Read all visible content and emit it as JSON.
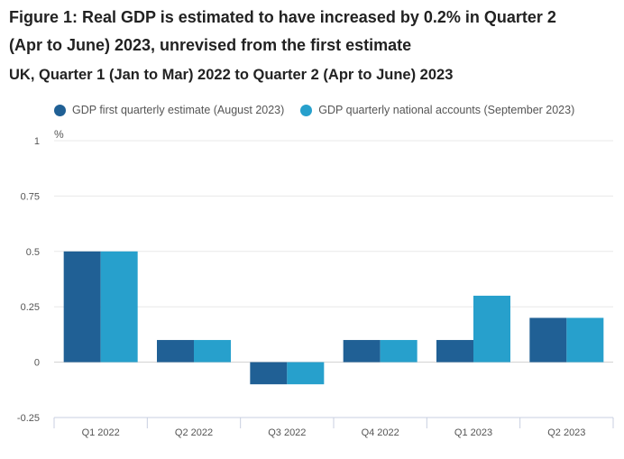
{
  "title": "Figure 1: Real GDP is estimated to have increased by 0.2% in Quarter 2 (Apr to June) 2023, unrevised from the first estimate",
  "subtitle": "UK, Quarter 1 (Jan to Mar) 2022 to Quarter 2 (Apr to June) 2023",
  "chart_data": {
    "type": "bar",
    "ylabel": "%",
    "ylim": [
      -0.25,
      1
    ],
    "yticks": [
      "1",
      "0.75",
      "0.5",
      "0.25",
      "0",
      "-0.25"
    ],
    "grid": true,
    "legend_position": "top",
    "categories": [
      "Q1 2022",
      "Q2 2022",
      "Q3 2022",
      "Q4 2022",
      "Q1 2023",
      "Q2 2023"
    ],
    "series": [
      {
        "name": "GDP first quarterly estimate (August 2023)",
        "color": "#206095",
        "values": [
          0.5,
          0.1,
          -0.1,
          0.1,
          0.1,
          0.2
        ]
      },
      {
        "name": "GDP quarterly national accounts (September 2023)",
        "color": "#27a0cc",
        "values": [
          0.5,
          0.1,
          -0.1,
          0.1,
          0.3,
          0.2
        ]
      }
    ]
  }
}
